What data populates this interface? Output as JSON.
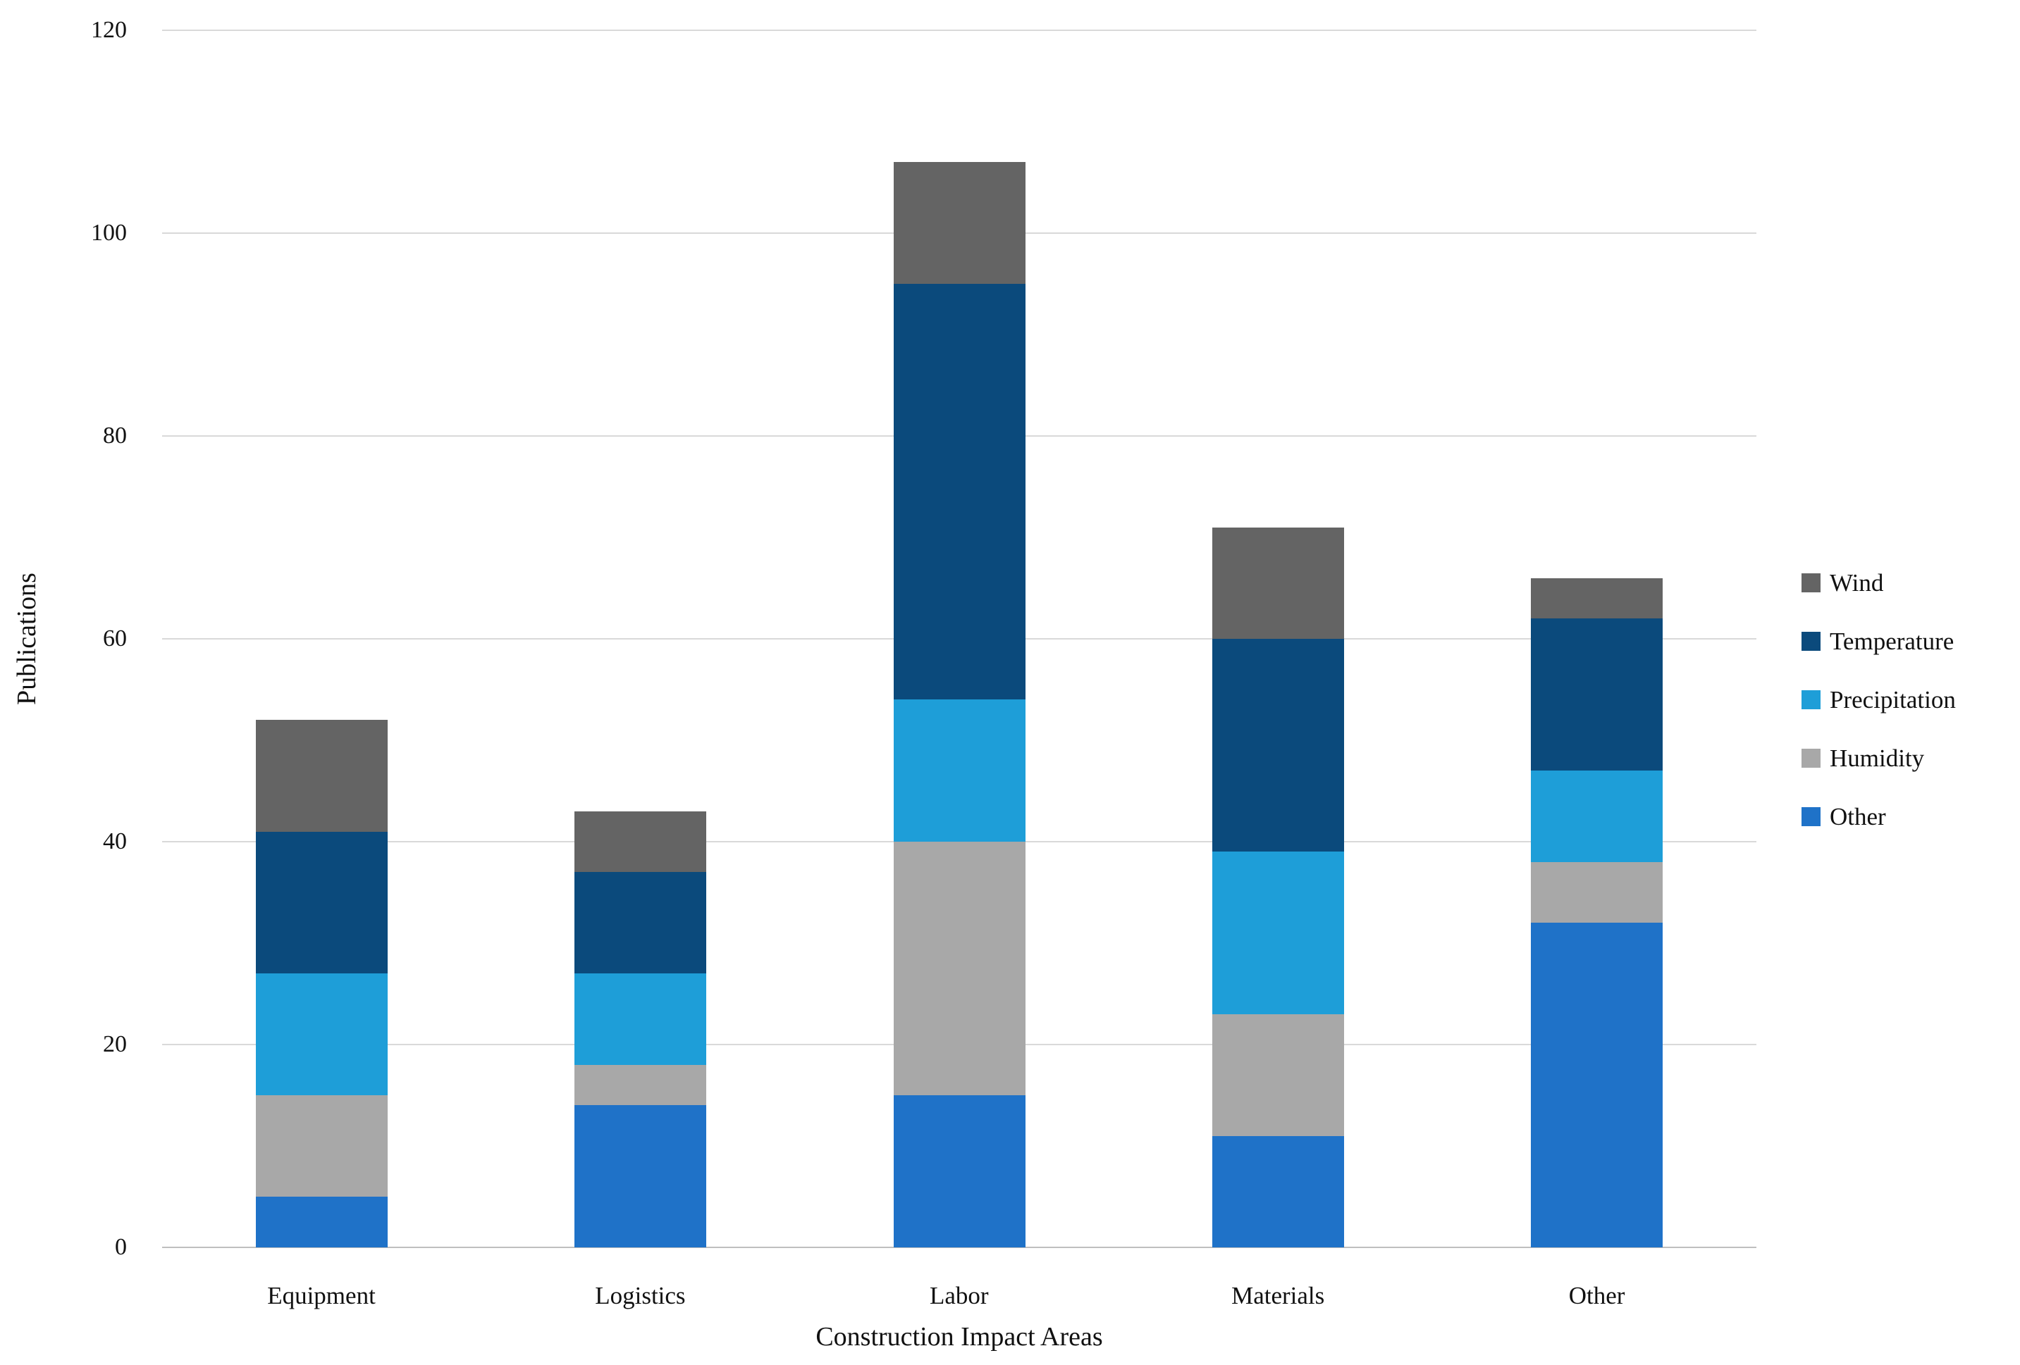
{
  "chart_data": {
    "type": "bar",
    "stacked": true,
    "title": "",
    "xlabel": "Construction Impact Areas",
    "ylabel": "Publications",
    "categories": [
      "Equipment",
      "Logistics",
      "Labor",
      "Materials",
      "Other"
    ],
    "series": [
      {
        "name": "Other",
        "color": "#1f72c8",
        "values": [
          5,
          14,
          15,
          11,
          32
        ]
      },
      {
        "name": "Humidity",
        "color": "#a8a8a8",
        "values": [
          10,
          4,
          25,
          12,
          6
        ]
      },
      {
        "name": "Precipitation",
        "color": "#1e9ed8",
        "values": [
          12,
          9,
          14,
          16,
          9
        ]
      },
      {
        "name": "Temperature",
        "color": "#0b4a7c",
        "values": [
          14,
          10,
          41,
          21,
          15
        ]
      },
      {
        "name": "Wind",
        "color": "#646464",
        "values": [
          11,
          6,
          12,
          11,
          4
        ]
      }
    ],
    "totals": [
      52,
      43,
      107,
      71,
      66
    ],
    "ylim": [
      0,
      120
    ],
    "yticks": [
      0,
      20,
      40,
      60,
      80,
      100,
      120
    ],
    "grid": "horizontal",
    "gridline_color": "#d9d9d9",
    "baseline_color": "#bfbfbf",
    "legend_position": "right",
    "legend_order": [
      "Wind",
      "Temperature",
      "Precipitation",
      "Humidity",
      "Other"
    ]
  }
}
